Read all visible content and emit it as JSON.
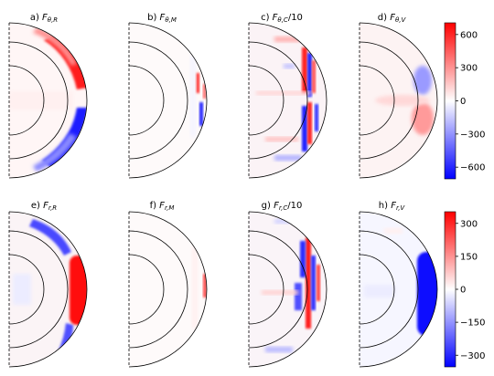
{
  "colormap": {
    "neg": "#0000ff",
    "zero": "#ffffff",
    "pos": "#ff0000"
  },
  "rows": [
    {
      "colorbar_ticks": [
        "600",
        "300",
        "0",
        "−300",
        "−600"
      ],
      "panels": [
        {
          "label": "a) ",
          "sym": "F",
          "sub": "θ,R",
          "suffix": ""
        },
        {
          "label": "b) ",
          "sym": "F",
          "sub": "θ,M",
          "suffix": ""
        },
        {
          "label": "c) ",
          "sym": "F",
          "sub": "θ,C",
          "suffix": "/10"
        },
        {
          "label": "d) ",
          "sym": "F",
          "sub": "θ,V",
          "suffix": ""
        }
      ]
    },
    {
      "colorbar_ticks": [
        "300",
        "150",
        "0",
        "−150",
        "−300"
      ],
      "panels": [
        {
          "label": "e) ",
          "sym": "F",
          "sub": "r,R",
          "suffix": ""
        },
        {
          "label": "f) ",
          "sym": "F",
          "sub": "r,M",
          "suffix": ""
        },
        {
          "label": "g) ",
          "sym": "F",
          "sub": "r,C",
          "suffix": "/10"
        },
        {
          "label": "h) ",
          "sym": "F",
          "sub": "r,V",
          "suffix": ""
        }
      ]
    }
  ]
}
